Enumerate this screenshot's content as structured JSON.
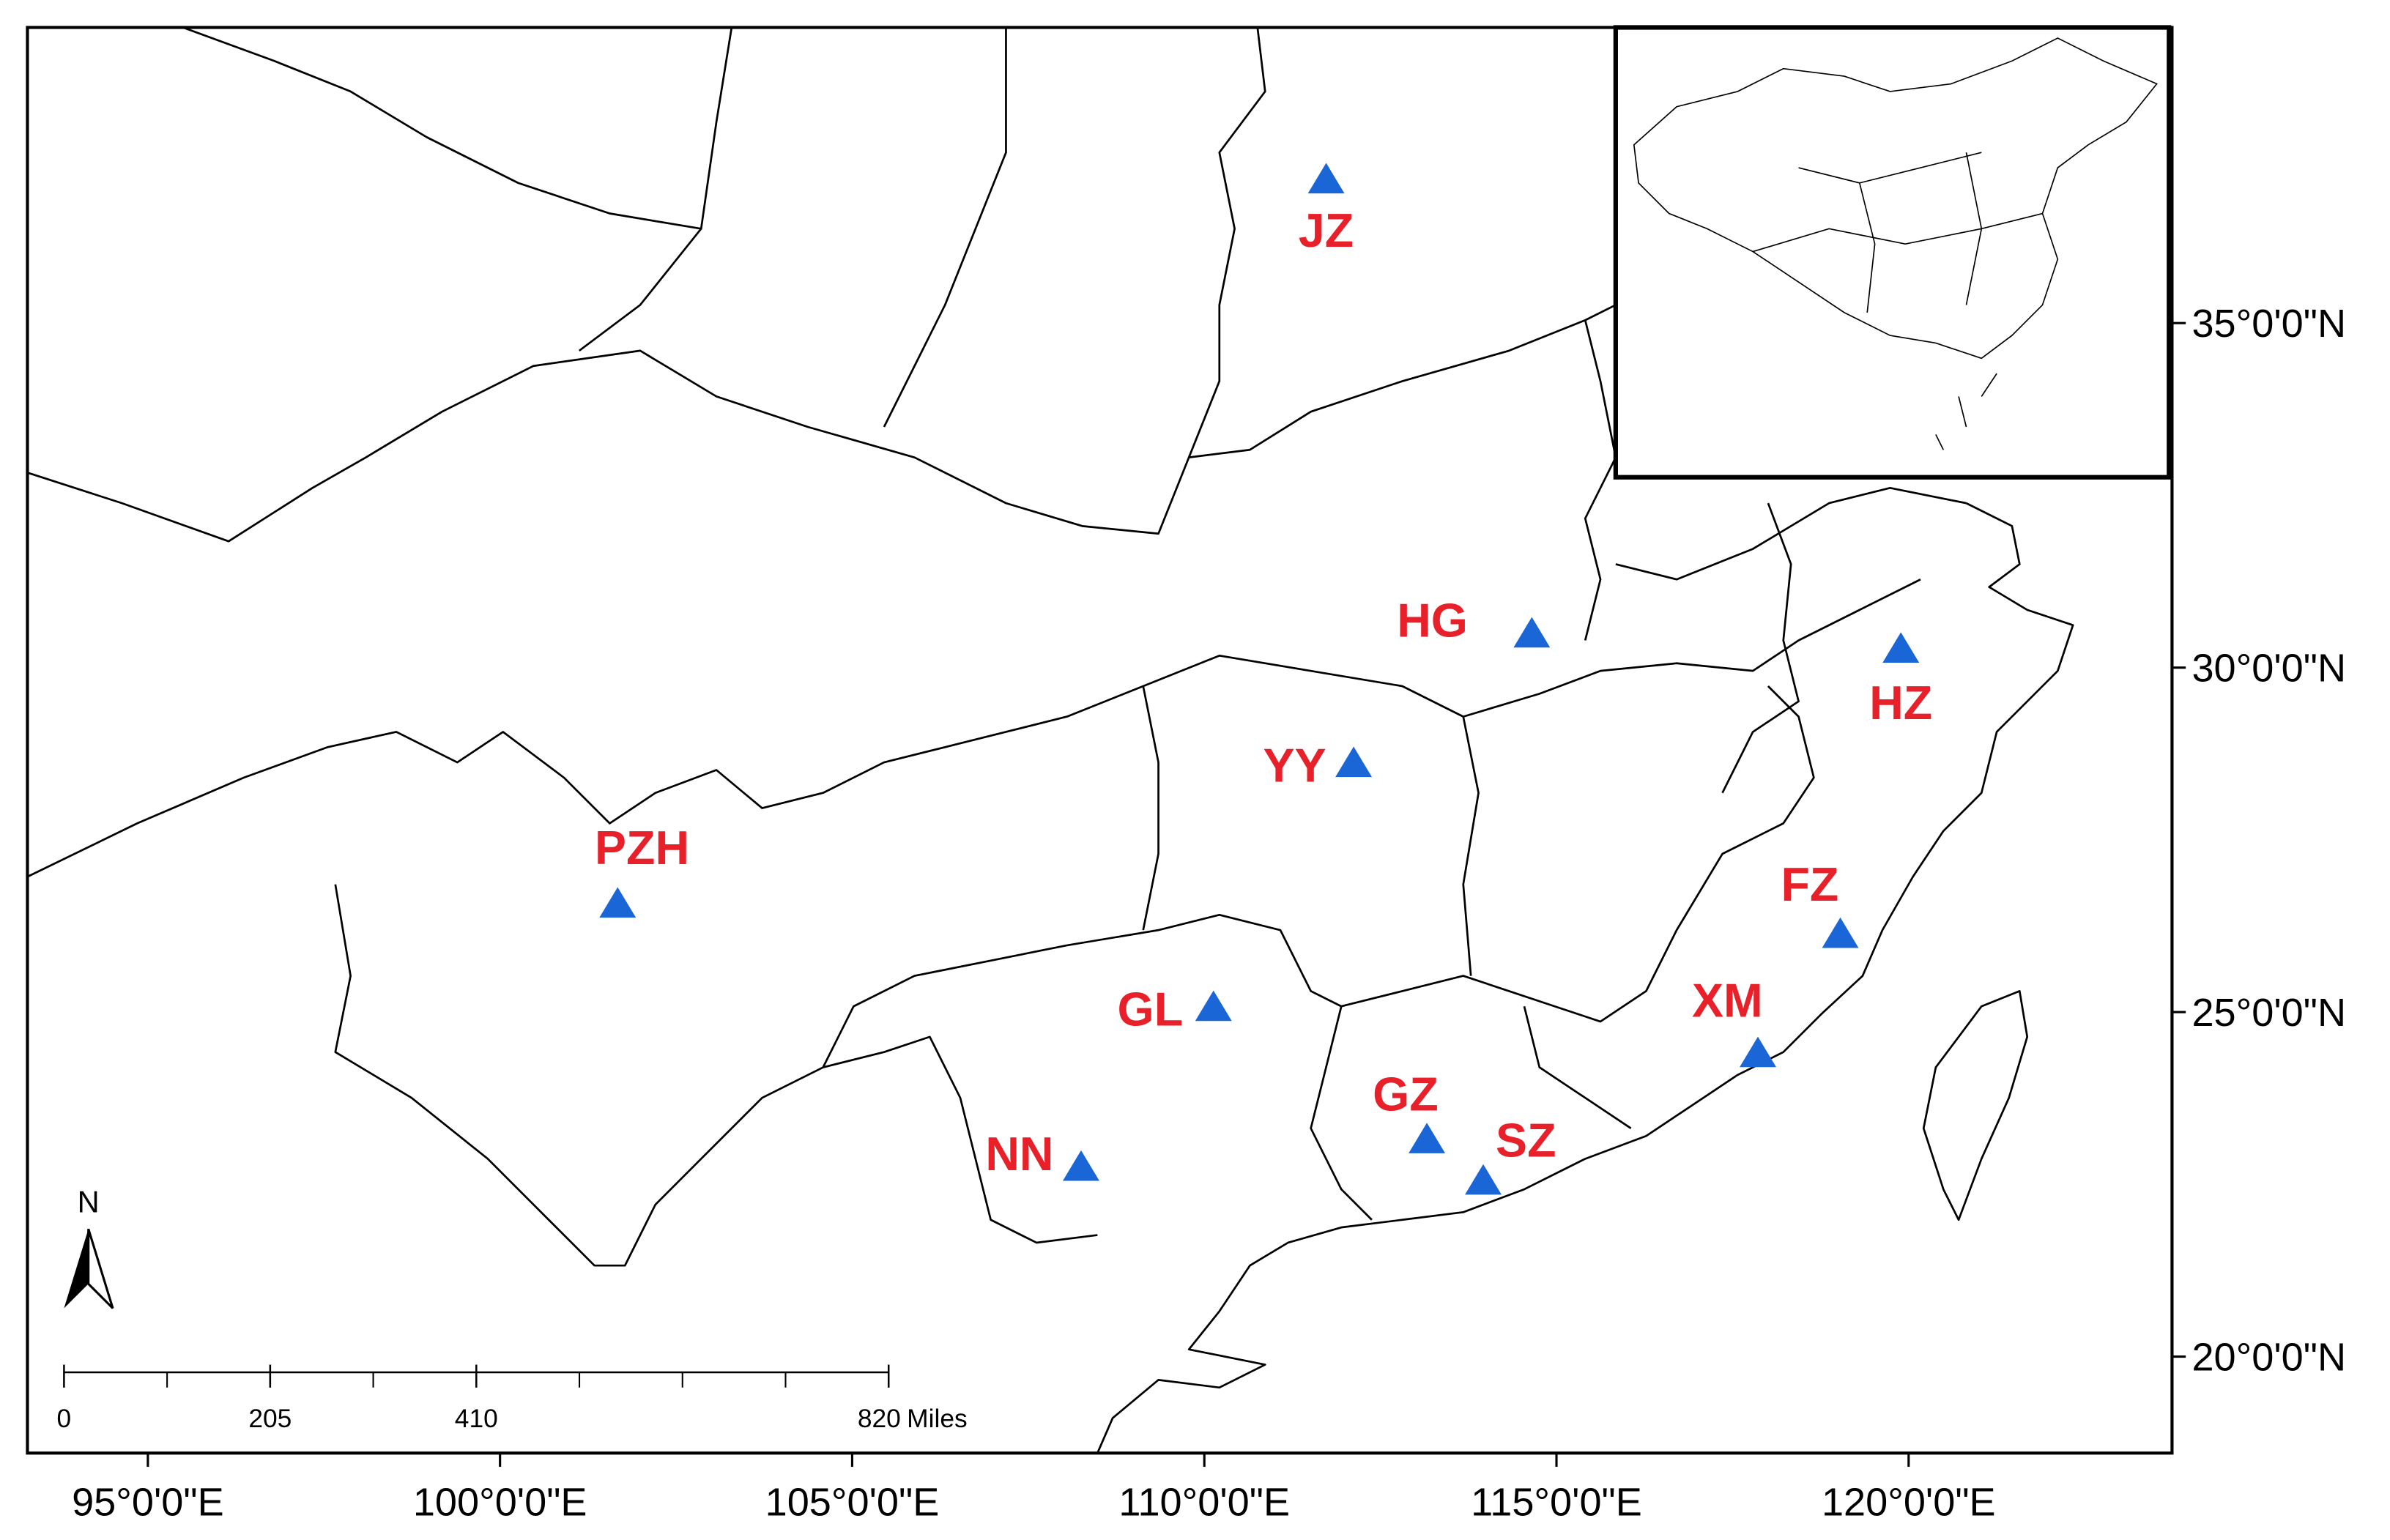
{
  "map": {
    "xlim": [
      93.29,
      123.74
    ],
    "ylim": [
      18.6,
      39.29
    ],
    "xticks": [
      {
        "value": 95,
        "label": "95°0'0\"E"
      },
      {
        "value": 100,
        "label": "100°0'0\"E"
      },
      {
        "value": 105,
        "label": "105°0'0\"E"
      },
      {
        "value": 110,
        "label": "110°0'0\"E"
      },
      {
        "value": 115,
        "label": "115°0'0\"E"
      },
      {
        "value": 120,
        "label": "120°0'0\"E"
      }
    ],
    "yticks": [
      {
        "value": 20,
        "label": "20°0'0\"N"
      },
      {
        "value": 25,
        "label": "25°0'0\"N"
      },
      {
        "value": 30,
        "label": "30°0'0\"N"
      },
      {
        "value": 35,
        "label": "35°0'0\"N"
      }
    ],
    "color": "#1a66d6",
    "label_color": "#e8202a",
    "sites": [
      {
        "label": "JZ",
        "lon": 111.73,
        "lat": 37.08
      },
      {
        "label": "HG",
        "lon": 114.65,
        "lat": 30.49
      },
      {
        "label": "HZ",
        "lon": 119.89,
        "lat": 30.27
      },
      {
        "label": "YY",
        "lon": 112.12,
        "lat": 28.61
      },
      {
        "label": "PZH",
        "lon": 101.67,
        "lat": 26.57
      },
      {
        "label": "FZ",
        "lon": 119.03,
        "lat": 26.13
      },
      {
        "label": "GL",
        "lon": 110.13,
        "lat": 25.07
      },
      {
        "label": "XM",
        "lon": 117.86,
        "lat": 24.4
      },
      {
        "label": "GZ",
        "lon": 113.16,
        "lat": 23.15
      },
      {
        "label": "SZ",
        "lon": 113.96,
        "lat": 22.55
      },
      {
        "label": "NN",
        "lon": 108.25,
        "lat": 22.75
      }
    ],
    "north": "N",
    "scale_bar": {
      "ticks": [
        0,
        205,
        410,
        820
      ],
      "unit": "Miles"
    }
  }
}
